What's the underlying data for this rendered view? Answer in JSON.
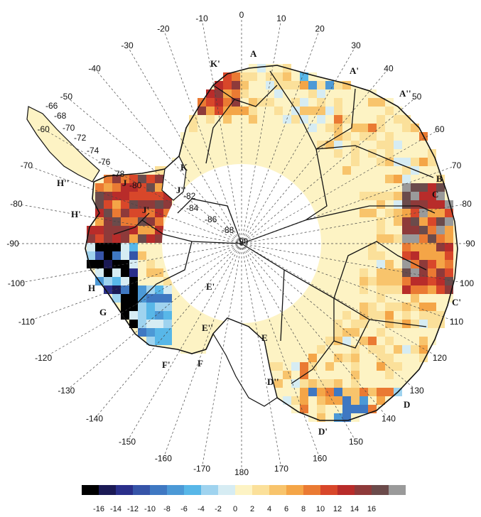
{
  "map": {
    "longitude_labels": [
      "-10",
      "0",
      "10",
      "20",
      "30",
      "40",
      "50",
      "60",
      "70",
      "80",
      "90",
      "100",
      "110",
      "120",
      "130",
      "140",
      "150",
      "160",
      "170",
      "180",
      "-170",
      "-160",
      "-150",
      "-140",
      "-130",
      "-120",
      "-110",
      "-100",
      "-90",
      "-80",
      "-70",
      "-60",
      "-50",
      "-40",
      "-30",
      "-20"
    ],
    "latitude_labels": [
      "-66",
      "-68",
      "-70",
      "-72",
      "-74",
      "-76",
      "-78",
      "-80",
      "-82",
      "-84",
      "-86",
      "-88",
      "-90"
    ],
    "basin_labels": [
      "A",
      "A'",
      "A''",
      "B",
      "C",
      "C'",
      "D",
      "D'",
      "D''",
      "E",
      "E'",
      "E''",
      "F",
      "F'",
      "G",
      "H",
      "H'",
      "H''",
      "J",
      "J'",
      "J''",
      "K",
      "K'"
    ],
    "colors": {
      "ice_sheet": "#fdf3c4",
      "coastline": "#111111",
      "grid": "#555555"
    }
  },
  "colorbar": {
    "tick_labels": [
      "-16",
      "-14",
      "-12",
      "-10",
      "-8",
      "-6",
      "-4",
      "-2",
      "0",
      "2",
      "4",
      "6",
      "8",
      "10",
      "12",
      "14",
      "16"
    ],
    "colors": [
      "#000000",
      "#1b1a55",
      "#2a2f8a",
      "#3654a8",
      "#3f78c2",
      "#4c99d6",
      "#58b7e8",
      "#9fd3ef",
      "#d6ecf3",
      "#fdf3c4",
      "#fbe09a",
      "#f8c46c",
      "#f4a547",
      "#ea7a33",
      "#d8472a",
      "#b82c2a",
      "#8e3a3a",
      "#6b4b4b",
      "#9a9a9a"
    ]
  }
}
